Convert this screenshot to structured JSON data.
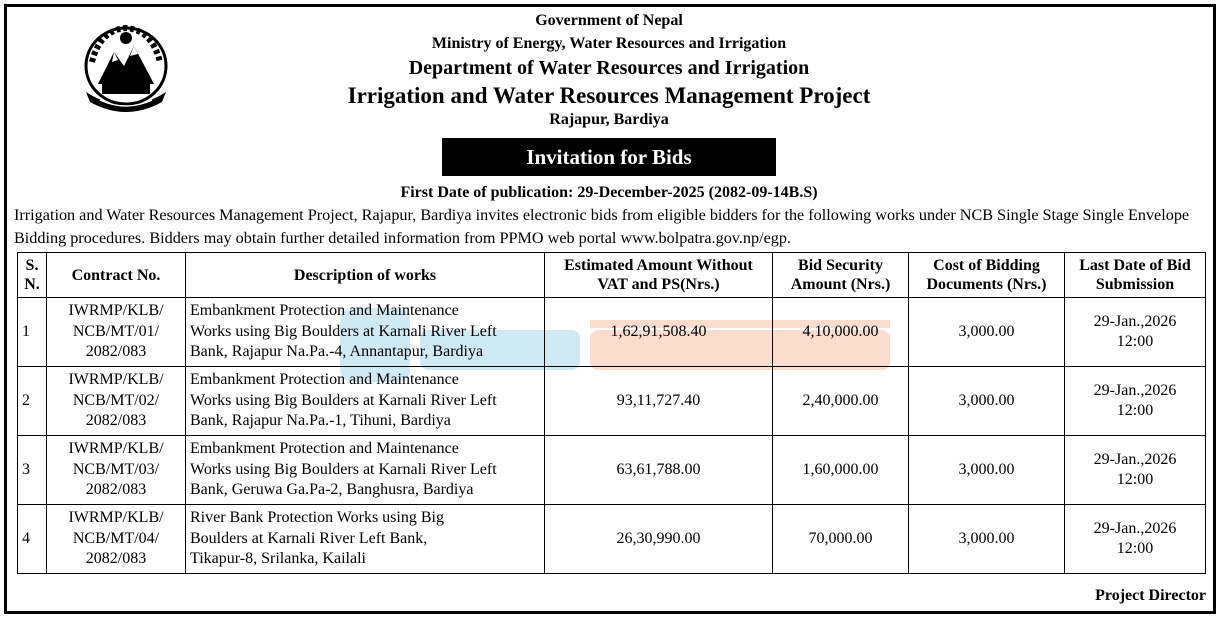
{
  "header": {
    "line1": "Government of Nepal",
    "line2": "Ministry of Energy, Water Resources and Irrigation",
    "line3": "Department of Water Resources and Irrigation",
    "line4": "Irrigation and Water Resources Management Project",
    "line5": "Rajapur, Bardiya"
  },
  "banner": "Invitation for Bids",
  "publication": "First Date of publication: 29-December-2025 (2082-09-14B.S)",
  "intro": "Irrigation and Water Resources Management Project, Rajapur, Bardiya invites electronic bids from eligible bidders for the following works under NCB Single Stage Single Envelope Bidding procedures. Bidders may obtain further detailed information from PPMO web portal www.bolpatra.gov.np/egp.",
  "table": {
    "headers": {
      "sn": "S. N.",
      "contract": "Contract No.",
      "description": "Description of works",
      "amount": "Estimated Amount Without VAT and PS(Nrs.)",
      "security": "Bid Security Amount (Nrs.)",
      "cost": "Cost of Bidding Documents (Nrs.)",
      "deadline": "Last Date of Bid Submission"
    },
    "rows": [
      {
        "sn": "1",
        "contract_a": "IWRMP/KLB/",
        "contract_b": "NCB/MT/01/",
        "contract_c": "2082/083",
        "desc_a": "Embankment Protection and Maintenance",
        "desc_b": "Works using Big Boulders at Karnali River Left",
        "desc_c": "Bank, Rajapur Na.Pa.-4, Annantapur, Bardiya",
        "amount": "1,62,91,508.40",
        "security": "4,10,000.00",
        "cost": "3,000.00",
        "date": "29-Jan.,2026",
        "time": "12:00"
      },
      {
        "sn": "2",
        "contract_a": "IWRMP/KLB/",
        "contract_b": "NCB/MT/02/",
        "contract_c": "2082/083",
        "desc_a": "Embankment Protection and Maintenance",
        "desc_b": "Works using Big Boulders at Karnali River Left",
        "desc_c": "Bank, Rajapur Na.Pa.-1, Tihuni, Bardiya",
        "amount": "93,11,727.40",
        "security": "2,40,000.00",
        "cost": "3,000.00",
        "date": "29-Jan.,2026",
        "time": "12:00"
      },
      {
        "sn": "3",
        "contract_a": "IWRMP/KLB/",
        "contract_b": "NCB/MT/03/",
        "contract_c": "2082/083",
        "desc_a": "Embankment Protection and Maintenance",
        "desc_b": "Works using Big Boulders at Karnali River Left",
        "desc_c": "Bank, Geruwa Ga.Pa-2, Banghusra, Bardiya",
        "amount": "63,61,788.00",
        "security": "1,60,000.00",
        "cost": "3,000.00",
        "date": "29-Jan.,2026",
        "time": "12:00"
      },
      {
        "sn": "4",
        "contract_a": "IWRMP/KLB/",
        "contract_b": "NCB/MT/04/",
        "contract_c": "2082/083",
        "desc_a": "River Bank Protection Works using Big",
        "desc_b": "Boulders at Karnali River Left Bank,",
        "desc_c": "Tikapur-8, Srilanka, Kailali",
        "amount": "26,30,990.00",
        "security": "70,000.00",
        "cost": "3,000.00",
        "date": "29-Jan.,2026",
        "time": "12:00"
      }
    ]
  },
  "signoff": "Project Director",
  "colors": {
    "ink": "#000000",
    "watermark_blue": "#2a9fd6",
    "watermark_orange": "#f26522"
  },
  "icons": {
    "emblem": "nepal-emblem-icon",
    "watermark": "watermark-logo-icon"
  }
}
